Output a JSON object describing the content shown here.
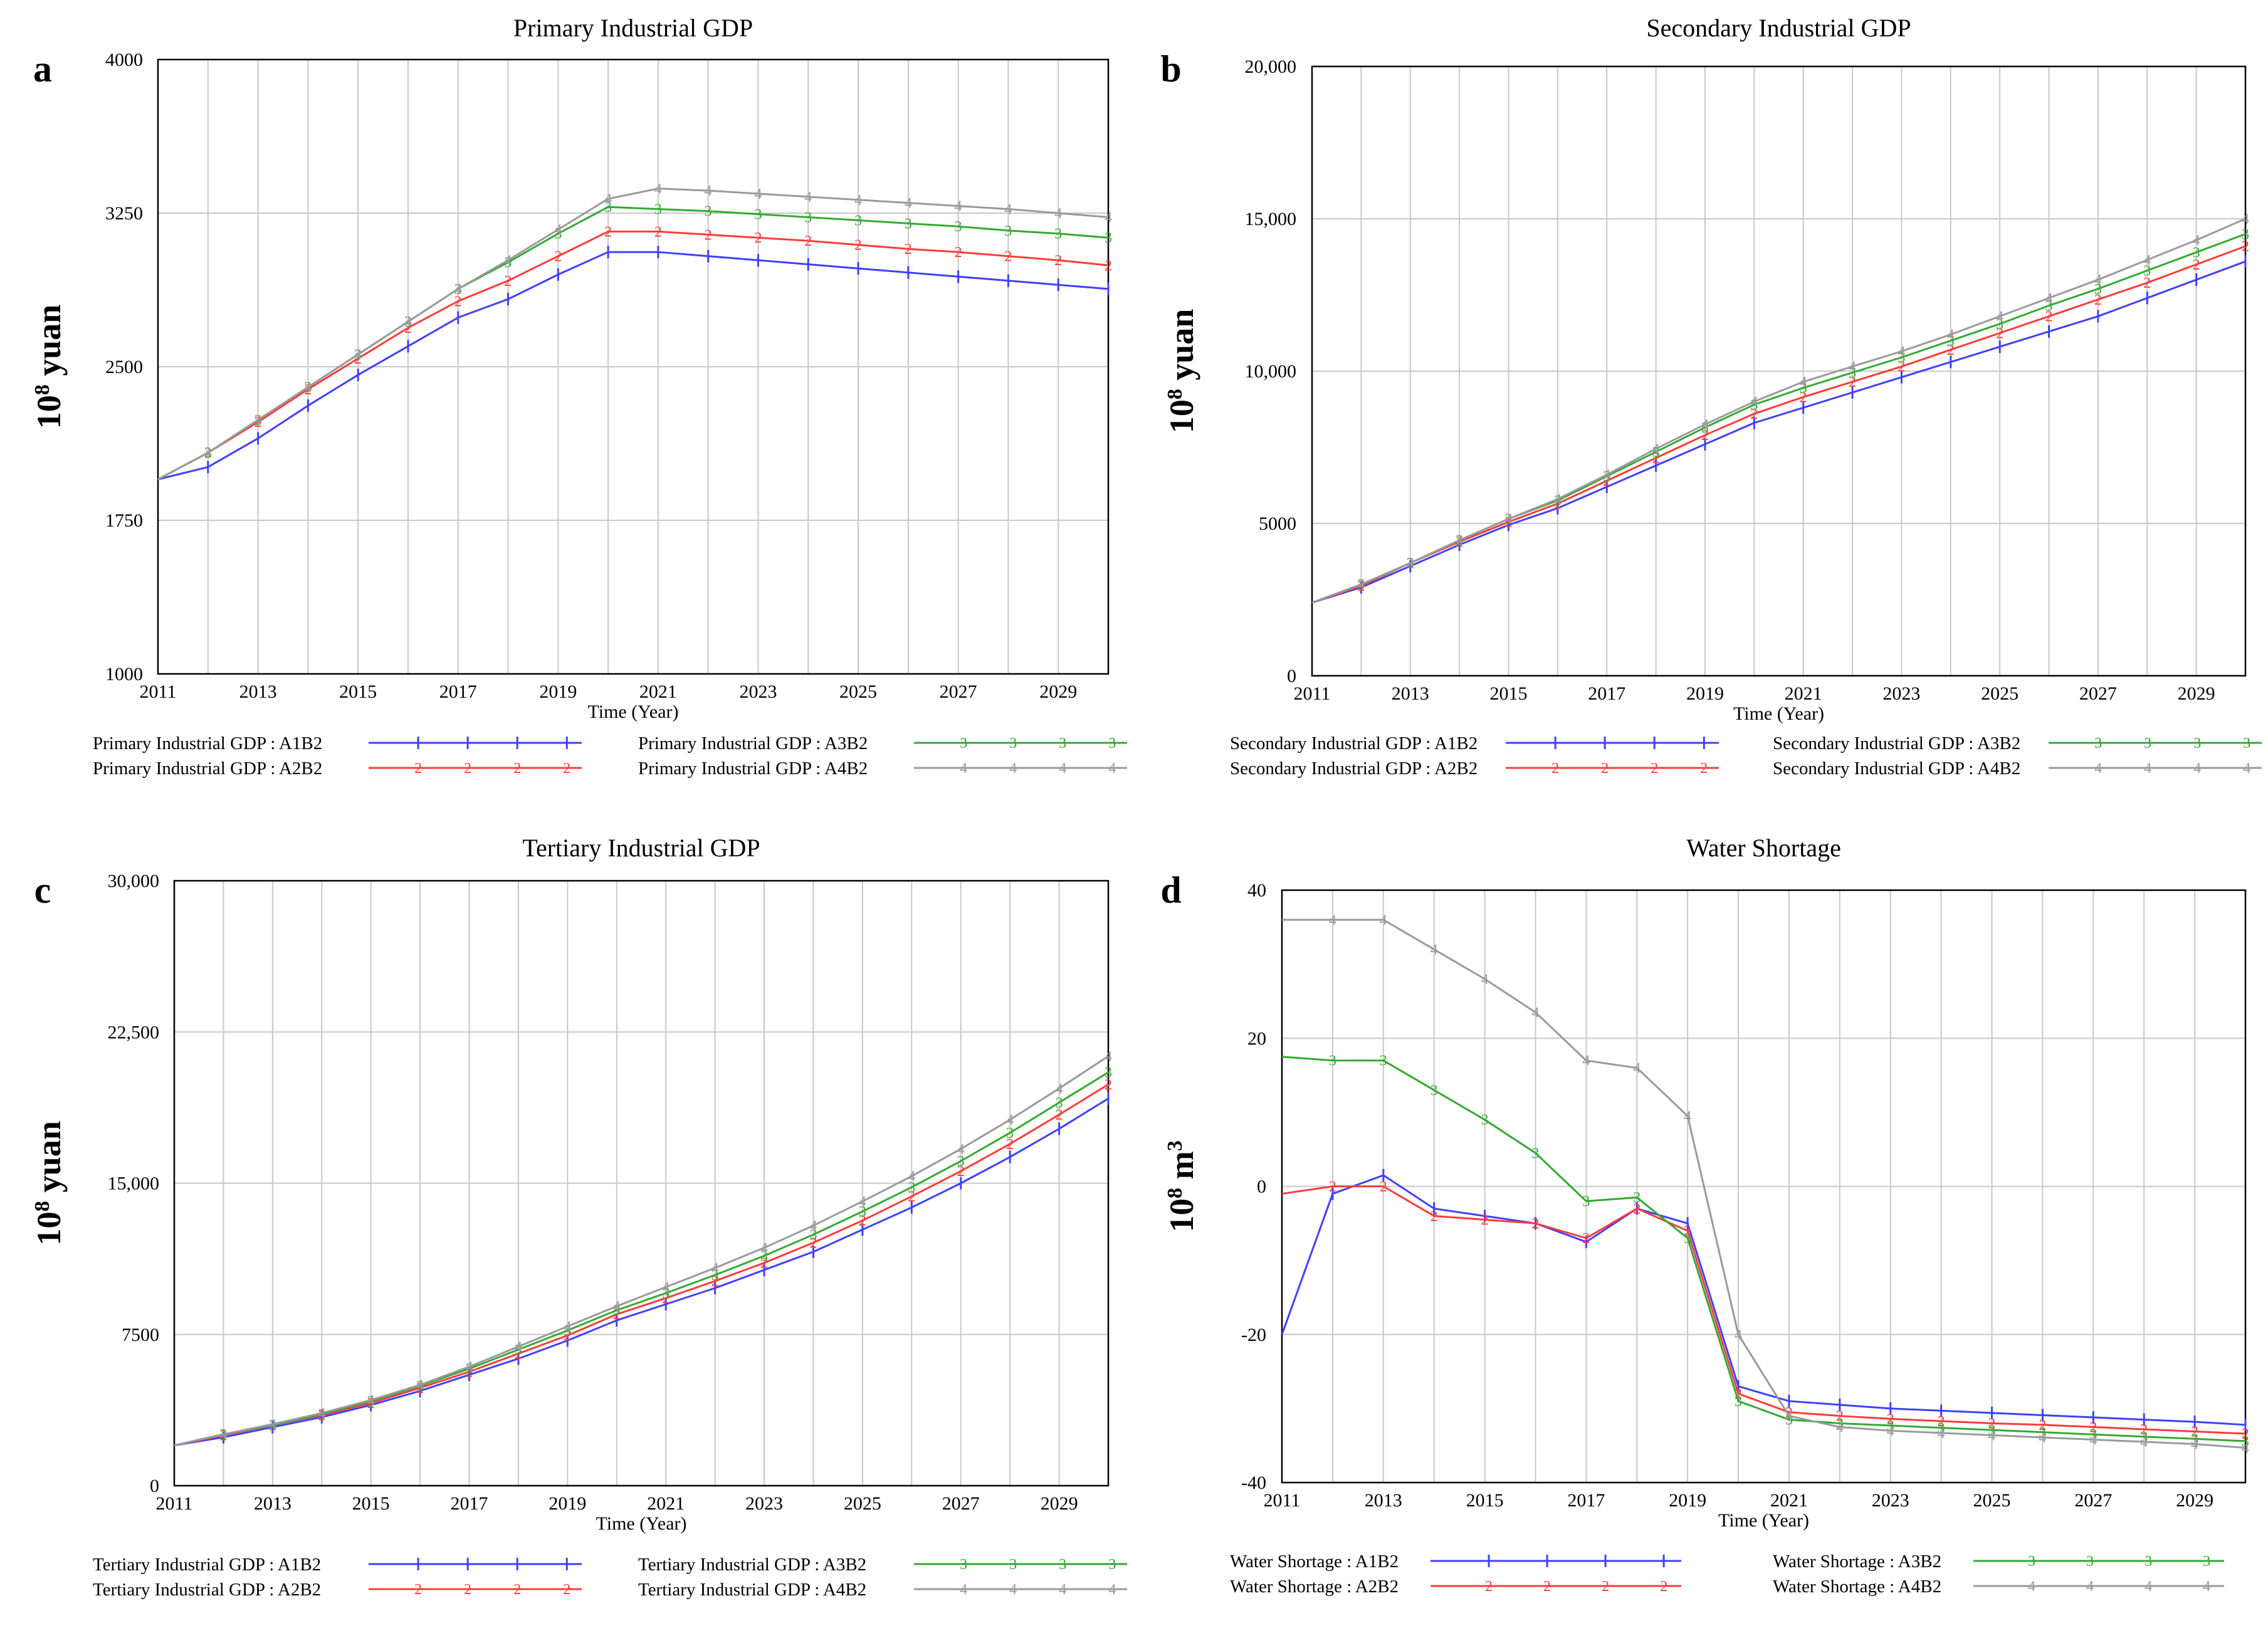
{
  "figure": {
    "years": [
      2011,
      2012,
      2013,
      2014,
      2015,
      2016,
      2017,
      2018,
      2019,
      2020,
      2021,
      2022,
      2023,
      2024,
      2025,
      2026,
      2027,
      2028,
      2029,
      2030
    ],
    "colors": {
      "A1B2": "#4040ff",
      "A2B2": "#ff3b3b",
      "A3B2": "#33aa33",
      "A4B2": "#9a9a9a"
    },
    "x_ticks": [
      "2011",
      "2013",
      "2015",
      "2017",
      "2019",
      "2021",
      "2023",
      "2025",
      "2027",
      "2029"
    ],
    "xlabel": "Time (Year)"
  },
  "chart_data": [
    {
      "id": "a",
      "letter": "a",
      "type": "line",
      "title": "Primary Industrial GDP",
      "ylabel_base": "10",
      "ylabel_exp": "8",
      "ylabel_unit": " yuan",
      "xlabel": "Time (Year)",
      "ylim": [
        1000,
        4000
      ],
      "y_ticks": [
        "4000",
        "3250",
        "2500",
        "1750",
        "1000"
      ],
      "x": [
        2011,
        2012,
        2013,
        2014,
        2015,
        2016,
        2017,
        2018,
        2019,
        2020,
        2021,
        2022,
        2023,
        2024,
        2025,
        2026,
        2027,
        2028,
        2029,
        2030
      ],
      "series": [
        {
          "name": "Primary Industrial GDP : A1B2",
          "key": "A1B2",
          "marker": "1",
          "values": [
            1950,
            2010,
            2150,
            2310,
            2460,
            2600,
            2740,
            2830,
            2950,
            3060,
            3060,
            3040,
            3020,
            3000,
            2980,
            2960,
            2940,
            2920,
            2900,
            2880
          ]
        },
        {
          "name": "Primary Industrial GDP : A2B2",
          "key": "A2B2",
          "marker": "2",
          "values": [
            1950,
            2080,
            2230,
            2390,
            2540,
            2690,
            2820,
            2920,
            3040,
            3160,
            3160,
            3145,
            3130,
            3115,
            3095,
            3075,
            3060,
            3040,
            3020,
            2995
          ]
        },
        {
          "name": "Primary Industrial GDP : A3B2",
          "key": "A3B2",
          "marker": "3",
          "values": [
            1950,
            2080,
            2240,
            2400,
            2560,
            2720,
            2880,
            3010,
            3150,
            3280,
            3270,
            3260,
            3245,
            3230,
            3215,
            3200,
            3185,
            3165,
            3150,
            3130
          ]
        },
        {
          "name": "Primary Industrial GDP : A4B2",
          "key": "A4B2",
          "marker": "4",
          "values": [
            1950,
            2080,
            2240,
            2400,
            2560,
            2720,
            2880,
            3020,
            3170,
            3320,
            3370,
            3360,
            3345,
            3330,
            3315,
            3300,
            3285,
            3270,
            3250,
            3230
          ]
        }
      ]
    },
    {
      "id": "b",
      "letter": "b",
      "type": "line",
      "title": "Secondary Industrial GDP",
      "ylabel_base": "10",
      "ylabel_exp": "8",
      "ylabel_unit": " yuan",
      "xlabel": "Time (Year)",
      "ylim": [
        0,
        20000
      ],
      "y_ticks": [
        "20,000",
        "15,000",
        "10,000",
        "5000",
        "0"
      ],
      "x": [
        2011,
        2012,
        2013,
        2014,
        2015,
        2016,
        2017,
        2018,
        2019,
        2020,
        2021,
        2022,
        2023,
        2024,
        2025,
        2026,
        2027,
        2028,
        2029,
        2030
      ],
      "series": [
        {
          "name": "Secondary Industrial GDP : A1B2",
          "key": "A1B2",
          "marker": "1",
          "values": [
            2400,
            2900,
            3600,
            4300,
            4950,
            5500,
            6200,
            6900,
            7600,
            8300,
            8800,
            9300,
            9800,
            10300,
            10800,
            11300,
            11800,
            12400,
            13000,
            13600
          ]
        },
        {
          "name": "Secondary Industrial GDP : A2B2",
          "key": "A2B2",
          "marker": "2",
          "values": [
            2400,
            2950,
            3700,
            4400,
            5050,
            5650,
            6400,
            7150,
            7900,
            8600,
            9150,
            9650,
            10150,
            10700,
            11250,
            11800,
            12350,
            12900,
            13500,
            14100
          ]
        },
        {
          "name": "Secondary Industrial GDP : A3B2",
          "key": "A3B2",
          "marker": "3",
          "values": [
            2400,
            3000,
            3700,
            4450,
            5150,
            5750,
            6550,
            7350,
            8150,
            8900,
            9450,
            9950,
            10450,
            11000,
            11550,
            12150,
            12700,
            13300,
            13900,
            14500
          ]
        },
        {
          "name": "Secondary Industrial GDP : A4B2",
          "key": "A4B2",
          "marker": "4",
          "values": [
            2400,
            3000,
            3700,
            4450,
            5150,
            5800,
            6600,
            7450,
            8250,
            9000,
            9650,
            10150,
            10650,
            11200,
            11800,
            12400,
            13000,
            13650,
            14300,
            15000
          ]
        }
      ]
    },
    {
      "id": "c",
      "letter": "c",
      "type": "line",
      "title": "Tertiary Industrial GDP",
      "ylabel_base": "10",
      "ylabel_exp": "8",
      "ylabel_unit": " yuan",
      "xlabel": "Time (Year)",
      "ylim": [
        0,
        30000
      ],
      "y_ticks": [
        "30,000",
        "22,500",
        "15,000",
        "7500",
        "0"
      ],
      "x": [
        2011,
        2012,
        2013,
        2014,
        2015,
        2016,
        2017,
        2018,
        2019,
        2020,
        2021,
        2022,
        2023,
        2024,
        2025,
        2026,
        2027,
        2028,
        2029,
        2030
      ],
      "series": [
        {
          "name": "Tertiary Industrial GDP : A1B2",
          "key": "A1B2",
          "marker": "1",
          "values": [
            2000,
            2400,
            2900,
            3400,
            4000,
            4700,
            5500,
            6300,
            7200,
            8200,
            9000,
            9800,
            10700,
            11600,
            12700,
            13800,
            15000,
            16300,
            17700,
            19200
          ]
        },
        {
          "name": "Tertiary Industrial GDP : A2B2",
          "key": "A2B2",
          "marker": "2",
          "values": [
            2000,
            2500,
            3000,
            3500,
            4100,
            4850,
            5650,
            6550,
            7450,
            8500,
            9300,
            10150,
            11050,
            12050,
            13150,
            14350,
            15600,
            16950,
            18400,
            19900
          ]
        },
        {
          "name": "Tertiary Industrial GDP : A3B2",
          "key": "A3B2",
          "marker": "3",
          "values": [
            2000,
            2550,
            3000,
            3550,
            4200,
            4950,
            5800,
            6750,
            7700,
            8700,
            9550,
            10450,
            11400,
            12450,
            13600,
            14800,
            16100,
            17500,
            19000,
            20500
          ]
        },
        {
          "name": "Tertiary Industrial GDP : A4B2",
          "key": "A4B2",
          "marker": "4",
          "values": [
            2000,
            2550,
            3050,
            3600,
            4250,
            5000,
            5900,
            6900,
            7900,
            8900,
            9850,
            10800,
            11800,
            12900,
            14100,
            15350,
            16700,
            18150,
            19700,
            21300
          ]
        }
      ]
    },
    {
      "id": "d",
      "letter": "d",
      "type": "line",
      "title": "Water Shortage",
      "ylabel_base": "10",
      "ylabel_exp": "8",
      "ylabel_unit": " m",
      "ylabel_unit_exp": "3",
      "xlabel": "Time (Year)",
      "ylim": [
        -40,
        40
      ],
      "y_ticks": [
        "40",
        "20",
        "0",
        "-20",
        "-40"
      ],
      "x": [
        2011,
        2012,
        2013,
        2014,
        2015,
        2016,
        2017,
        2018,
        2019,
        2020,
        2021,
        2022,
        2023,
        2024,
        2025,
        2026,
        2027,
        2028,
        2029,
        2030
      ],
      "series": [
        {
          "name": "Water Shortage : A1B2",
          "key": "A1B2",
          "marker": "1",
          "values": [
            -20,
            -1,
            1.5,
            -3,
            -4,
            -5,
            -7.5,
            -3,
            -5,
            -27,
            -29,
            -29.5,
            -30,
            -30.3,
            -30.6,
            -30.9,
            -31.2,
            -31.5,
            -31.8,
            -32.2
          ]
        },
        {
          "name": "Water Shortage : A2B2",
          "key": "A2B2",
          "marker": "2",
          "values": [
            -1,
            0,
            0,
            -4,
            -4.5,
            -5,
            -7,
            -3,
            -6,
            -28,
            -30.5,
            -31,
            -31.4,
            -31.7,
            -32,
            -32.2,
            -32.5,
            -32.8,
            -33.1,
            -33.4
          ]
        },
        {
          "name": "Water Shortage : A3B2",
          "key": "A3B2",
          "marker": "3",
          "values": [
            17.5,
            17,
            17,
            13,
            9,
            4.5,
            -2,
            -1.5,
            -7,
            -29,
            -31.5,
            -32,
            -32.3,
            -32.6,
            -32.9,
            -33.2,
            -33.5,
            -33.8,
            -34.1,
            -34.4
          ]
        },
        {
          "name": "Water Shortage : A4B2",
          "key": "A4B2",
          "marker": "4",
          "values": [
            36,
            36,
            36,
            32,
            28,
            23.5,
            17,
            16,
            9.5,
            -20,
            -31,
            -32.5,
            -33,
            -33.3,
            -33.6,
            -33.9,
            -34.2,
            -34.5,
            -34.8,
            -35.3
          ]
        }
      ]
    }
  ]
}
